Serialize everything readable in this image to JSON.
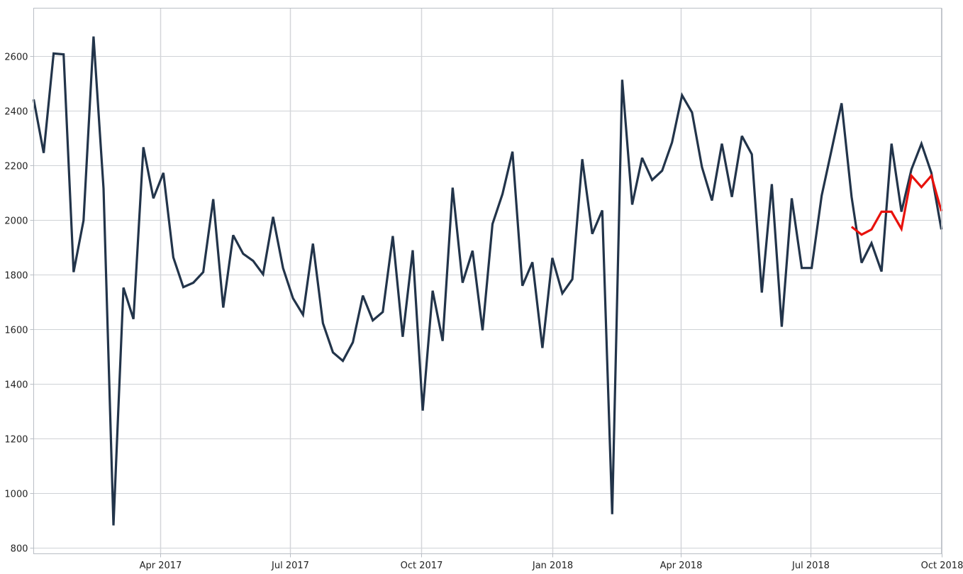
{
  "chart_data": {
    "type": "line",
    "title": "",
    "xlabel": "",
    "ylabel": "",
    "grid": true,
    "legend": "none",
    "ylim": [
      777,
      2774
    ],
    "xlim": [
      "2017-01-02",
      "2018-10-01"
    ],
    "y_ticks": [
      800,
      1000,
      1200,
      1400,
      1600,
      1800,
      2000,
      2200,
      2400,
      2600
    ],
    "x_ticks": [
      {
        "date": "2017-04-01",
        "label": "Apr 2017"
      },
      {
        "date": "2017-07-01",
        "label": "Jul 2017"
      },
      {
        "date": "2017-10-01",
        "label": "Oct 2017"
      },
      {
        "date": "2018-01-01",
        "label": "Jan 2018"
      },
      {
        "date": "2018-04-01",
        "label": "Apr 2018"
      },
      {
        "date": "2018-07-01",
        "label": "Jul 2018"
      },
      {
        "date": "2018-10-01",
        "label": "Oct 2018"
      }
    ],
    "series": [
      {
        "color": "#22344a",
        "x": [
          "2017-01-02",
          "2017-01-09",
          "2017-01-16",
          "2017-01-23",
          "2017-01-30",
          "2017-02-06",
          "2017-02-13",
          "2017-02-20",
          "2017-02-27",
          "2017-03-06",
          "2017-03-13",
          "2017-03-20",
          "2017-03-27",
          "2017-04-03",
          "2017-04-10",
          "2017-04-17",
          "2017-04-24",
          "2017-05-01",
          "2017-05-08",
          "2017-05-15",
          "2017-05-22",
          "2017-05-29",
          "2017-06-05",
          "2017-06-12",
          "2017-06-19",
          "2017-06-26",
          "2017-07-03",
          "2017-07-10",
          "2017-07-17",
          "2017-07-24",
          "2017-07-31",
          "2017-08-07",
          "2017-08-14",
          "2017-08-21",
          "2017-08-28",
          "2017-09-04",
          "2017-09-11",
          "2017-09-18",
          "2017-09-25",
          "2017-10-02",
          "2017-10-09",
          "2017-10-16",
          "2017-10-23",
          "2017-10-30",
          "2017-11-06",
          "2017-11-13",
          "2017-11-20",
          "2017-11-27",
          "2017-12-04",
          "2017-12-11",
          "2017-12-18",
          "2017-12-25",
          "2018-01-01",
          "2018-01-08",
          "2018-01-15",
          "2018-01-22",
          "2018-01-29",
          "2018-02-05",
          "2018-02-12",
          "2018-02-19",
          "2018-02-26",
          "2018-03-05",
          "2018-03-12",
          "2018-03-19",
          "2018-03-26",
          "2018-04-02",
          "2018-04-09",
          "2018-04-16",
          "2018-04-23",
          "2018-04-30",
          "2018-05-07",
          "2018-05-14",
          "2018-05-21",
          "2018-05-28",
          "2018-06-04",
          "2018-06-11",
          "2018-06-18",
          "2018-06-25",
          "2018-07-02",
          "2018-07-09",
          "2018-07-16",
          "2018-07-23",
          "2018-07-30",
          "2018-08-06",
          "2018-08-13",
          "2018-08-20",
          "2018-08-27",
          "2018-09-03",
          "2018-09-10",
          "2018-09-17",
          "2018-09-24",
          "2018-10-01"
        ],
        "y": [
          2440,
          2244,
          2608,
          2605,
          1808,
          1997,
          2670,
          2114,
          881,
          1751,
          1636,
          2265,
          2078,
          2171,
          1862,
          1753,
          1769,
          1808,
          2075,
          1678,
          1943,
          1875,
          1849,
          1800,
          2010,
          1823,
          1712,
          1652,
          1912,
          1621,
          1514,
          1483,
          1551,
          1722,
          1631,
          1662,
          1940,
          1571,
          1888,
          1301,
          1740,
          1556,
          2117,
          1769,
          1886,
          1595,
          1984,
          2094,
          2249,
          1758,
          1844,
          1530,
          1860,
          1730,
          1782,
          2221,
          1948,
          2034,
          922,
          2512,
          2055,
          2226,
          2145,
          2179,
          2283,
          2455,
          2392,
          2192,
          2070,
          2278,
          2083,
          2306,
          2239,
          1733,
          2130,
          1608,
          2078,
          1823,
          1823,
          2088,
          2257,
          2426,
          2083,
          1842,
          1914,
          1810,
          2278,
          2029,
          2184,
          2278,
          2171,
          1964
        ]
      },
      {
        "color": "#e8120c",
        "x": [
          "2018-07-30",
          "2018-08-06",
          "2018-08-13",
          "2018-08-20",
          "2018-08-27",
          "2018-09-03",
          "2018-09-10",
          "2018-09-17",
          "2018-09-24",
          "2018-10-01"
        ],
        "y": [
          1974,
          1945,
          1964,
          2029,
          2029,
          1966,
          2161,
          2119,
          2161,
          2031
        ]
      }
    ]
  }
}
